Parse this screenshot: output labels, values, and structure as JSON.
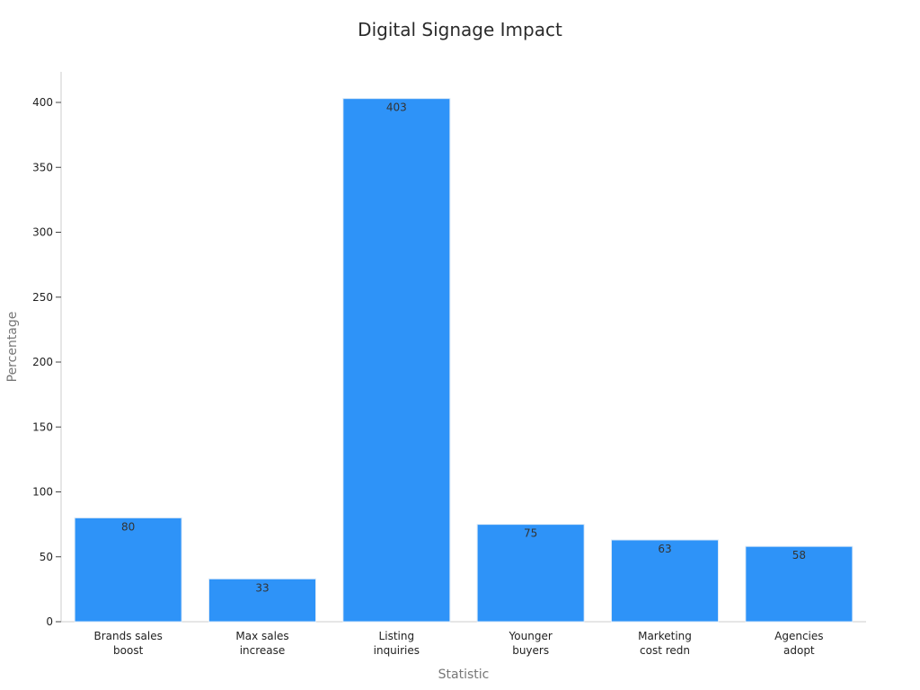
{
  "chart_data": {
    "type": "bar",
    "title": "Digital Signage Impact",
    "xlabel": "Statistic",
    "ylabel": "Percentage",
    "categories": [
      [
        "Brands sales",
        "boost"
      ],
      [
        "Max sales",
        "increase"
      ],
      [
        "Listing",
        "inquiries"
      ],
      [
        "Younger",
        "buyers"
      ],
      [
        "Marketing",
        "cost redn"
      ],
      [
        "Agencies",
        "adopt"
      ]
    ],
    "values": [
      80,
      33,
      403,
      75,
      63,
      58
    ],
    "ylim": [
      0,
      425
    ],
    "yticks": [
      0,
      50,
      100,
      150,
      200,
      250,
      300,
      350,
      400
    ],
    "grid": false,
    "legend": "none",
    "bar_color": "#2e93f8",
    "bar_edge_color": "#dbe9f7"
  }
}
